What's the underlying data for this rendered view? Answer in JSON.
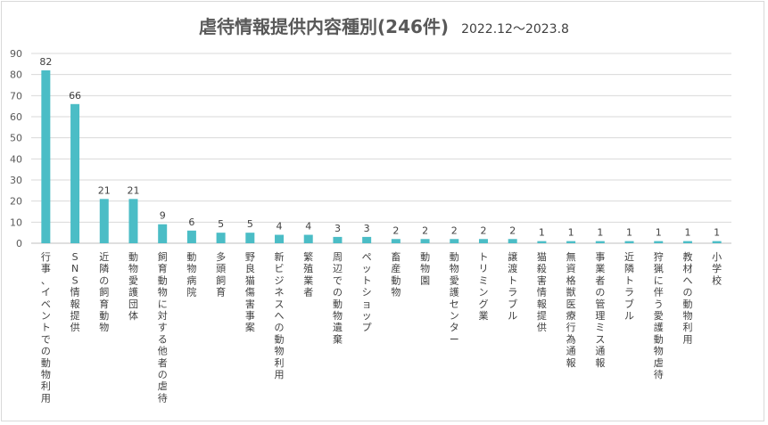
{
  "chart_data": {
    "type": "bar",
    "title": "虐待情報提供内容種別(246件)",
    "subtitle": "2022.12～2023.8",
    "categories": [
      "行事、イベントでの動物利用",
      "SNS情報提供",
      "近隣の飼育動物",
      "動物愛護団体",
      "飼育動物に対する他者の虐待",
      "動物病院",
      "多頭飼育",
      "野良猫傷害事案",
      "新ビジネスへの動物利用",
      "繁殖業者",
      "周辺での動物遺棄",
      "ペットショップ",
      "畜産動物",
      "動物園",
      "動物愛護センター",
      "トリミング業",
      "譲渡トラブル",
      "猫殺害情報提供",
      "無資格獣医療行為通報",
      "事業者の管理ミス通報",
      "近隣トラブル",
      "狩猟に伴う愛護動物虐待",
      "教材への動物利用",
      "小学校"
    ],
    "values": [
      82,
      66,
      21,
      21,
      9,
      6,
      5,
      5,
      4,
      4,
      3,
      3,
      2,
      2,
      2,
      2,
      2,
      1,
      1,
      1,
      1,
      1,
      1,
      1
    ],
    "ylim": [
      0,
      90
    ],
    "yticks": [
      0,
      10,
      20,
      30,
      40,
      50,
      60,
      70,
      80,
      90
    ],
    "xlabel": "",
    "ylabel": "",
    "grid": true,
    "legend": "none",
    "bar_color": "#4bbdc6",
    "grid_color": "#d9d9d9"
  }
}
